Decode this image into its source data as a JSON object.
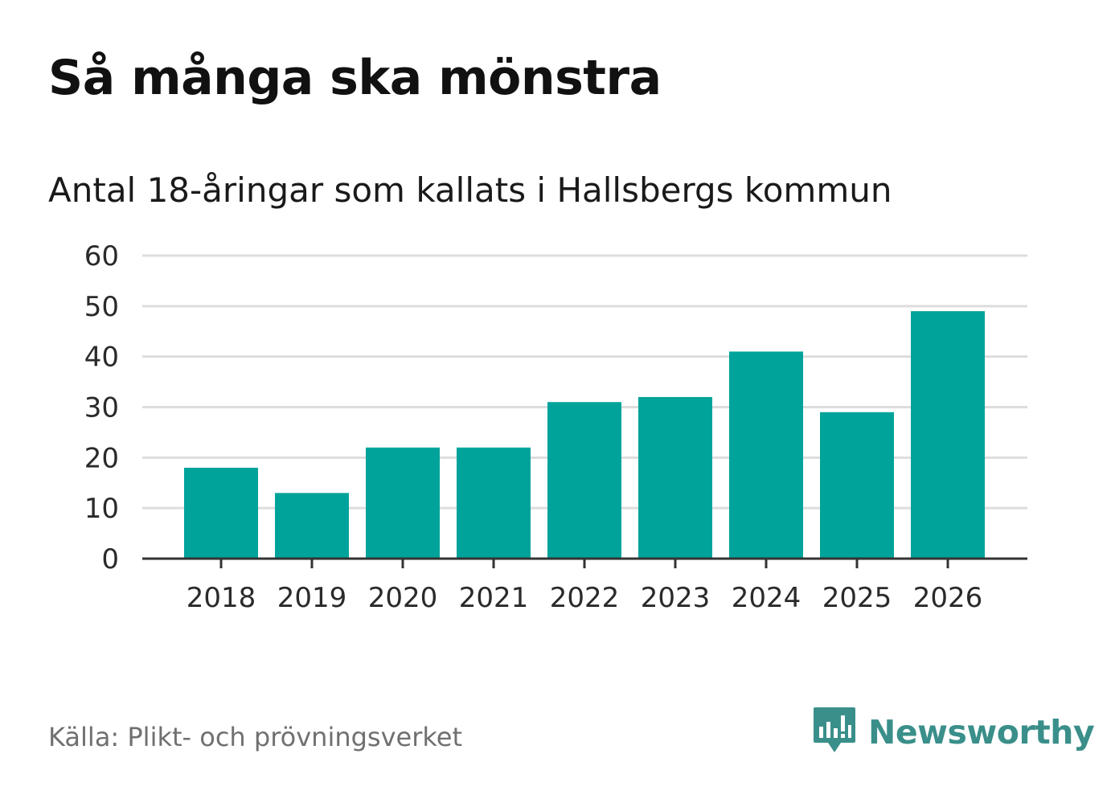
{
  "header": {
    "title": "Så många ska mönstra",
    "subtitle": "Antal 18-åringar som kallats i Hallsbergs kommun"
  },
  "footer": {
    "source": "Källa: Plikt- och prövningsverket",
    "brand": "Newsworthy",
    "brand_icon": "newsworthy-logo-icon"
  },
  "colors": {
    "bar": "#00A39A",
    "grid": "#dddddd",
    "axis": "#333333",
    "brand": "#3a8f8a"
  },
  "chart_data": {
    "type": "bar",
    "title": "Så många ska mönstra",
    "subtitle": "Antal 18-åringar som kallats i Hallsbergs kommun",
    "categories": [
      "2018",
      "2019",
      "2020",
      "2021",
      "2022",
      "2023",
      "2024",
      "2025",
      "2026"
    ],
    "values": [
      18,
      13,
      22,
      22,
      31,
      32,
      41,
      29,
      49
    ],
    "yticks": [
      0,
      10,
      20,
      30,
      40,
      50,
      60
    ],
    "ylim": [
      0,
      60
    ],
    "xlabel": "",
    "ylabel": "",
    "grid": true,
    "legend": "none"
  }
}
